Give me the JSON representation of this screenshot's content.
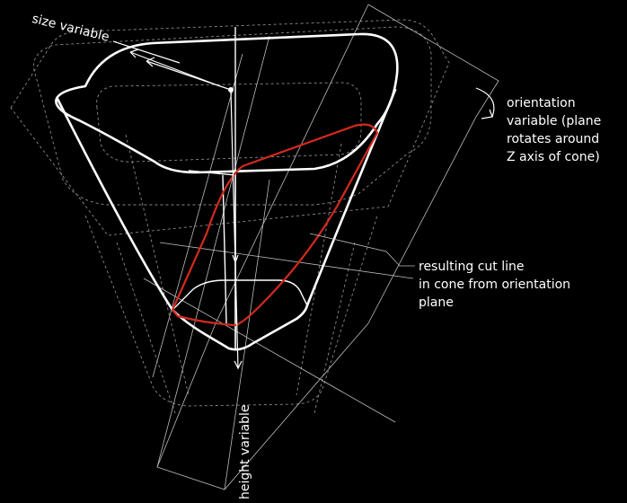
{
  "labels": {
    "size_variable": "size variable",
    "orientation_line1": "orientation",
    "orientation_line2": "variable (plane",
    "orientation_line3": "rotates around",
    "orientation_line4": "Z axis of cone)",
    "cut_line1": "resulting cut line",
    "cut_line2": "in cone from orientation",
    "cut_line3": "plane",
    "height_variable": "height variable"
  },
  "colors": {
    "background": "#000000",
    "cone_outline": "#ffffff",
    "cut_line": "#d42a1e",
    "guide_lines": "#8a8a8a"
  }
}
